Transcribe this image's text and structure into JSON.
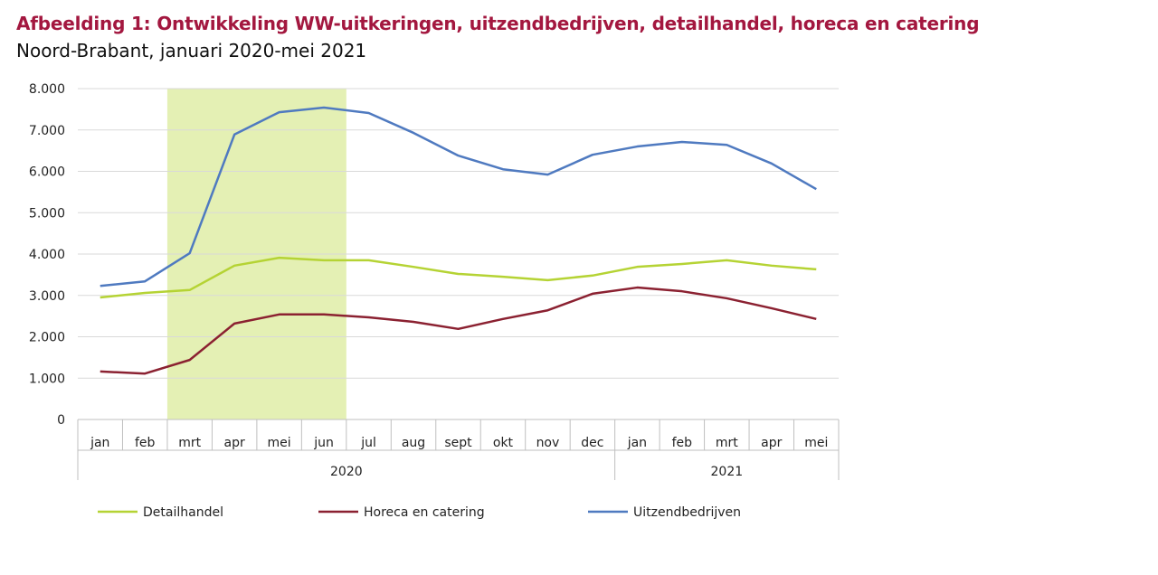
{
  "chart_data": {
    "type": "line",
    "title": "Afbeelding 1: Ontwikkeling WW-uitkeringen, uitzendbedrijven, detailhandel, horeca en catering",
    "subtitle": "Noord-Brabant, januari 2020-mei 2021",
    "categories": [
      "jan",
      "feb",
      "mrt",
      "apr",
      "mei",
      "jun",
      "jul",
      "aug",
      "sept",
      "okt",
      "nov",
      "dec",
      "jan",
      "feb",
      "mrt",
      "apr",
      "mei"
    ],
    "groups": [
      {
        "label": "2020",
        "start": 0,
        "end": 11
      },
      {
        "label": "2021",
        "start": 12,
        "end": 16
      }
    ],
    "ylim": [
      0,
      8000
    ],
    "yticks": [
      0,
      1000,
      2000,
      3000,
      4000,
      5000,
      6000,
      7000,
      8000
    ],
    "ytick_labels": [
      "0",
      "1.000",
      "2.000",
      "3.000",
      "4.000",
      "5.000",
      "6.000",
      "7.000",
      "8.000"
    ],
    "grid": true,
    "highlight": {
      "from": "mrt",
      "to": "jun",
      "color": "#e4f0b4"
    },
    "legend_position": "bottom",
    "series": [
      {
        "name": "Detailhandel",
        "color": "#b5d334",
        "values": [
          2950,
          3060,
          3130,
          3720,
          3910,
          3850,
          3850,
          3690,
          3520,
          3450,
          3370,
          3480,
          3690,
          3760,
          3850,
          3720,
          3630
        ]
      },
      {
        "name": "Horeca en catering",
        "color": "#8b2131",
        "values": [
          1160,
          1110,
          1440,
          2320,
          2540,
          2540,
          2470,
          2360,
          2190,
          2430,
          2640,
          3040,
          3190,
          3100,
          2930,
          2690,
          2430
        ]
      },
      {
        "name": "Uitzendbedrijven",
        "color": "#4f7ac0",
        "values": [
          3230,
          3340,
          4020,
          6890,
          7430,
          7540,
          7410,
          6930,
          6380,
          6050,
          5920,
          6400,
          6600,
          6710,
          6640,
          6190,
          5570
        ]
      }
    ]
  }
}
